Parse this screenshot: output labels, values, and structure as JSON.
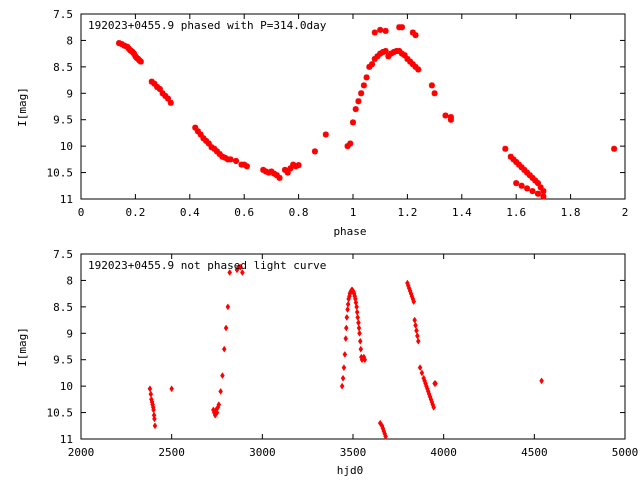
{
  "chart_data": [
    {
      "type": "scatter",
      "title": "192023+0455.9 phased with P=314.0day",
      "xlabel": "phase",
      "ylabel": "I[mag]",
      "xlim": [
        0,
        2
      ],
      "ylim": [
        7.5,
        11
      ],
      "y_inverted": true,
      "xticks": [
        "0",
        "0.2",
        "0.4",
        "0.6",
        "0.8",
        "1",
        "1.2",
        "1.4",
        "1.6",
        "1.8",
        "2"
      ],
      "yticks": [
        "7.5",
        "8",
        "8.5",
        "9",
        "9.5",
        "10",
        "10.5",
        "11"
      ],
      "grid": false,
      "marker_color": "#ff0000",
      "series": [
        {
          "x": [
            0.14,
            0.15,
            0.16,
            0.17,
            0.175,
            0.18,
            0.185,
            0.19,
            0.195,
            0.2,
            0.205,
            0.21,
            0.215,
            0.22,
            0.26,
            0.27,
            0.28,
            0.29,
            0.3,
            0.31,
            0.32,
            0.33,
            0.42,
            0.43,
            0.44,
            0.45,
            0.46,
            0.47,
            0.48,
            0.49,
            0.5,
            0.51,
            0.52,
            0.53,
            0.54,
            0.55,
            0.57,
            0.59,
            0.6,
            0.61,
            0.67,
            0.68,
            0.69,
            0.7,
            0.71,
            0.72,
            0.73,
            0.75,
            0.76,
            0.77,
            0.78,
            0.79,
            0.8,
            0.86,
            0.9,
            0.98,
            0.99,
            1.0,
            1.01,
            1.02,
            1.03,
            1.04,
            1.05,
            1.06,
            1.07,
            1.08,
            1.09,
            1.1,
            1.11,
            1.12,
            1.13,
            1.14,
            1.15,
            1.16,
            1.17,
            1.18,
            1.19,
            1.2,
            1.21,
            1.22,
            1.23,
            1.24,
            1.08,
            1.1,
            1.12,
            1.17,
            1.18,
            1.22,
            1.23,
            1.29,
            1.3,
            1.34,
            1.36,
            1.36,
            1.56,
            1.58,
            1.59,
            1.6,
            1.61,
            1.62,
            1.63,
            1.64,
            1.65,
            1.66,
            1.67,
            1.68,
            1.69,
            1.7,
            1.6,
            1.62,
            1.64,
            1.66,
            1.68,
            1.7,
            1.96
          ],
          "y": [
            8.05,
            8.07,
            8.1,
            8.12,
            8.15,
            8.18,
            8.2,
            8.22,
            8.25,
            8.3,
            8.33,
            8.35,
            8.38,
            8.4,
            8.78,
            8.82,
            8.88,
            8.92,
            9.0,
            9.05,
            9.1,
            9.18,
            9.65,
            9.72,
            9.78,
            9.85,
            9.9,
            9.95,
            10.02,
            10.05,
            10.1,
            10.15,
            10.2,
            10.22,
            10.25,
            10.25,
            10.28,
            10.35,
            10.35,
            10.38,
            10.45,
            10.48,
            10.5,
            10.48,
            10.52,
            10.55,
            10.6,
            10.45,
            10.5,
            10.42,
            10.35,
            10.38,
            10.36,
            10.1,
            9.78,
            10.0,
            9.95,
            9.55,
            9.3,
            9.15,
            9.0,
            8.85,
            8.7,
            8.5,
            8.45,
            8.35,
            8.3,
            8.25,
            8.22,
            8.2,
            8.3,
            8.25,
            8.22,
            8.2,
            8.2,
            8.25,
            8.28,
            8.35,
            8.4,
            8.45,
            8.5,
            8.55,
            7.85,
            7.8,
            7.82,
            7.75,
            7.75,
            7.85,
            7.9,
            8.85,
            9.0,
            9.42,
            9.45,
            9.5,
            10.05,
            10.2,
            10.25,
            10.3,
            10.35,
            10.4,
            10.45,
            10.5,
            10.55,
            10.6,
            10.65,
            10.7,
            10.78,
            10.85,
            10.7,
            10.75,
            10.8,
            10.85,
            10.9,
            10.95,
            10.05
          ]
        }
      ]
    },
    {
      "type": "scatter",
      "title": "192023+0455.9 not phased light curve",
      "xlabel": "hjd0",
      "ylabel": "I[mag]",
      "xlim": [
        2000,
        5000
      ],
      "ylim": [
        7.5,
        11
      ],
      "y_inverted": true,
      "xticks": [
        "2000",
        "2500",
        "3000",
        "3500",
        "4000",
        "4500",
        "5000"
      ],
      "yticks": [
        "7.5",
        "8",
        "8.5",
        "9",
        "9.5",
        "10",
        "10.5",
        "11"
      ],
      "grid": false,
      "marker_color": "#ff0000",
      "series": [
        {
          "x": [
            2380,
            2385,
            2388,
            2392,
            2395,
            2398,
            2400,
            2403,
            2405,
            2408,
            2500,
            2730,
            2735,
            2740,
            2745,
            2750,
            2755,
            2760,
            2770,
            2780,
            2790,
            2800,
            2810,
            2820,
            2860,
            2870,
            2880,
            2890,
            3440,
            3445,
            3450,
            3455,
            3460,
            3463,
            3466,
            3470,
            3473,
            3476,
            3480,
            3483,
            3486,
            3490,
            3493,
            3496,
            3500,
            3503,
            3506,
            3510,
            3513,
            3516,
            3520,
            3523,
            3526,
            3530,
            3533,
            3536,
            3540,
            3543,
            3546,
            3550,
            3560,
            3565,
            3650,
            3660,
            3665,
            3670,
            3675,
            3680,
            3800,
            3805,
            3810,
            3815,
            3820,
            3825,
            3830,
            3835,
            3840,
            3845,
            3850,
            3855,
            3860,
            3870,
            3880,
            3890,
            3895,
            3900,
            3905,
            3910,
            3915,
            3920,
            3925,
            3930,
            3935,
            3940,
            3945,
            3950,
            3955,
            4540
          ],
          "y": [
            10.05,
            10.15,
            10.25,
            10.3,
            10.35,
            10.4,
            10.45,
            10.55,
            10.62,
            10.75,
            10.05,
            10.45,
            10.5,
            10.55,
            10.45,
            10.5,
            10.4,
            10.35,
            10.1,
            9.8,
            9.3,
            8.9,
            8.5,
            7.85,
            7.8,
            7.75,
            7.75,
            7.85,
            10.0,
            9.85,
            9.65,
            9.4,
            9.1,
            8.9,
            8.7,
            8.55,
            8.45,
            8.35,
            8.3,
            8.25,
            8.22,
            8.2,
            8.18,
            8.18,
            8.2,
            8.22,
            8.25,
            8.3,
            8.35,
            8.42,
            8.5,
            8.6,
            8.7,
            8.8,
            8.9,
            9.0,
            9.15,
            9.3,
            9.45,
            9.5,
            9.45,
            9.5,
            10.7,
            10.75,
            10.8,
            10.85,
            10.9,
            10.95,
            8.05,
            8.1,
            8.15,
            8.2,
            8.25,
            8.3,
            8.35,
            8.4,
            8.75,
            8.85,
            8.95,
            9.05,
            9.15,
            9.65,
            9.75,
            9.85,
            9.9,
            9.95,
            10.0,
            10.05,
            10.1,
            10.15,
            10.2,
            10.25,
            10.3,
            10.35,
            10.4,
            9.95,
            9.95,
            9.9
          ]
        }
      ]
    }
  ]
}
